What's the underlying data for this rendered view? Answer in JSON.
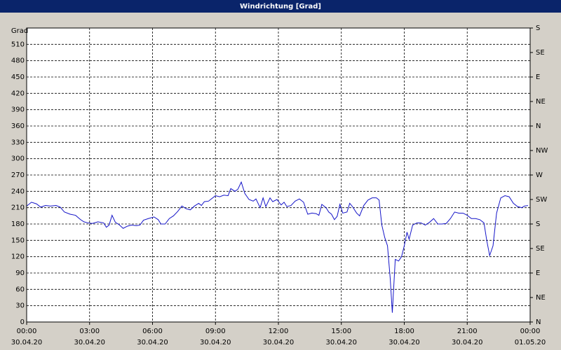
{
  "chart_data": {
    "type": "line",
    "title": "Windrichtung [Grad]",
    "y_label": "Grad",
    "xlim": [
      0,
      24
    ],
    "xticks": [
      {
        "value": 0,
        "label": "00:00",
        "date": "30.04.20"
      },
      {
        "value": 3,
        "label": "03:00",
        "date": "30.04.20"
      },
      {
        "value": 6,
        "label": "06:00",
        "date": "30.04.20"
      },
      {
        "value": 9,
        "label": "09:00",
        "date": "30.04.20"
      },
      {
        "value": 12,
        "label": "12:00",
        "date": "30.04.20"
      },
      {
        "value": 15,
        "label": "15:00",
        "date": "30.04.20"
      },
      {
        "value": 18,
        "label": "18:00",
        "date": "30.04.20"
      },
      {
        "value": 21,
        "label": "21:00",
        "date": "30.04.20"
      },
      {
        "value": 24,
        "label": "00:00",
        "date": "01.05.20"
      }
    ],
    "ylim": [
      0,
      540
    ],
    "yticks": [
      0,
      30,
      60,
      90,
      120,
      150,
      180,
      210,
      240,
      270,
      300,
      330,
      360,
      390,
      420,
      450,
      480,
      510
    ],
    "y2lim": [
      0,
      540
    ],
    "y2ticks": [
      {
        "value": 0,
        "label": "N"
      },
      {
        "value": 45,
        "label": "NE"
      },
      {
        "value": 90,
        "label": "E"
      },
      {
        "value": 135,
        "label": "SE"
      },
      {
        "value": 180,
        "label": "S"
      },
      {
        "value": 225,
        "label": "SW"
      },
      {
        "value": 270,
        "label": "W"
      },
      {
        "value": 315,
        "label": "NW"
      },
      {
        "value": 360,
        "label": "N"
      },
      {
        "value": 405,
        "label": "NE"
      },
      {
        "value": 450,
        "label": "E"
      },
      {
        "value": 495,
        "label": "SE"
      },
      {
        "value": 540,
        "label": "S"
      }
    ],
    "grid": true,
    "series": [
      {
        "color": "#1414c8",
        "x": [
          0,
          0.23,
          0.47,
          0.67,
          0.9,
          1.13,
          1.4,
          1.6,
          1.8,
          2.07,
          2.33,
          2.57,
          2.73,
          2.93,
          3.13,
          3.4,
          3.67,
          3.8,
          3.93,
          4.07,
          4.23,
          4.4,
          4.6,
          4.8,
          5,
          5.23,
          5.4,
          5.57,
          5.8,
          6.07,
          6.27,
          6.4,
          6.6,
          6.8,
          7,
          7.2,
          7.4,
          7.6,
          7.8,
          8,
          8.2,
          8.33,
          8.47,
          8.67,
          8.8,
          9,
          9.2,
          9.4,
          9.6,
          9.73,
          9.93,
          10.07,
          10.23,
          10.4,
          10.6,
          10.8,
          10.93,
          11.13,
          11.27,
          11.4,
          11.6,
          11.73,
          11.93,
          12.13,
          12.27,
          12.4,
          12.6,
          12.8,
          13,
          13.2,
          13.4,
          13.6,
          13.8,
          13.93,
          14.07,
          14.27,
          14.4,
          14.53,
          14.67,
          14.8,
          14.93,
          15.07,
          15.27,
          15.4,
          15.53,
          15.73,
          15.87,
          16.07,
          16.27,
          16.47,
          16.67,
          16.8,
          16.93,
          17.07,
          17.2,
          17.33,
          17.43,
          17.57,
          17.73,
          17.87,
          18,
          18.13,
          18.23,
          18.4,
          18.6,
          18.8,
          19,
          19.2,
          19.4,
          19.6,
          19.8,
          20,
          20.2,
          20.4,
          20.6,
          20.8,
          21,
          21.2,
          21.4,
          21.6,
          21.8,
          21.93,
          22.07,
          22.23,
          22.4,
          22.6,
          22.8,
          23,
          23.2,
          23.4,
          23.6,
          23.73,
          23.9
        ],
        "values": [
          213,
          220,
          217,
          211,
          214,
          213,
          214,
          211,
          202,
          198,
          196,
          188,
          184,
          182,
          181,
          184,
          182,
          174,
          178,
          196,
          183,
          179,
          172,
          176,
          178,
          177,
          178,
          187,
          190,
          193,
          188,
          180,
          180,
          190,
          195,
          203,
          213,
          208,
          206,
          213,
          218,
          214,
          221,
          222,
          226,
          232,
          230,
          233,
          232,
          245,
          240,
          244,
          257,
          236,
          225,
          222,
          226,
          210,
          228,
          212,
          228,
          221,
          225,
          215,
          220,
          212,
          214,
          222,
          226,
          220,
          198,
          200,
          199,
          196,
          216,
          210,
          202,
          198,
          188,
          194,
          216,
          200,
          202,
          218,
          212,
          200,
          195,
          214,
          224,
          228,
          228,
          224,
          178,
          155,
          140,
          80,
          17,
          115,
          112,
          120,
          140,
          165,
          152,
          178,
          182,
          182,
          178,
          183,
          190,
          180,
          180,
          181,
          190,
          202,
          200,
          200,
          196,
          190,
          190,
          188,
          182,
          150,
          122,
          140,
          200,
          228,
          232,
          230,
          218,
          212,
          210,
          213,
          214
        ]
      }
    ]
  }
}
